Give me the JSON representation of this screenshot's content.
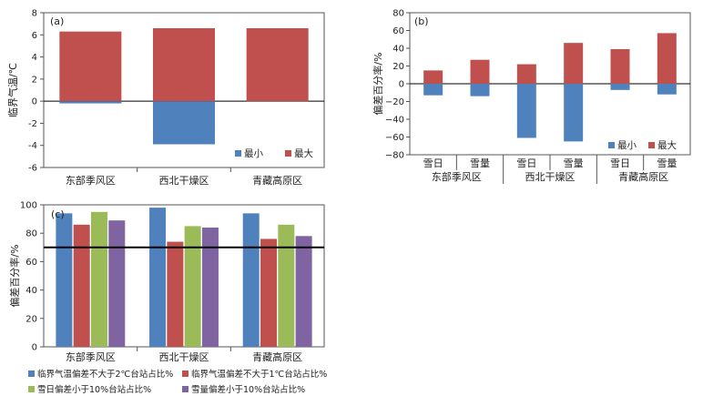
{
  "colors": {
    "min": "#4f81bd",
    "max": "#c0504d",
    "green": "#9bbb59",
    "purple": "#8064a2"
  },
  "chart_data": [
    {
      "id": "a",
      "type": "bar",
      "label": "(a)",
      "ylabel": "临界气温/℃",
      "categories": [
        "东部季风区",
        "西北干燥区",
        "青藏高原区"
      ],
      "ylim": [
        -6,
        8
      ],
      "yticks": [
        -6,
        -4,
        -2,
        0,
        2,
        4,
        6,
        8
      ],
      "series": [
        {
          "name": "最小",
          "values": [
            -0.2,
            -3.9,
            0.1
          ]
        },
        {
          "name": "最大",
          "values": [
            6.3,
            6.6,
            6.6
          ]
        }
      ],
      "legend": "bottom-right"
    },
    {
      "id": "b",
      "type": "bar",
      "label": "(b)",
      "ylabel": "偏差百分率/%",
      "categories": [
        "雪日",
        "雪量",
        "雪日",
        "雪量",
        "雪日",
        "雪量"
      ],
      "groups": [
        "东部季风区",
        "西北干燥区",
        "青藏高原区"
      ],
      "ylim": [
        -80,
        80
      ],
      "yticks": [
        -80,
        -60,
        -40,
        -20,
        0,
        20,
        40,
        60,
        80
      ],
      "series": [
        {
          "name": "最小",
          "values": [
            -13,
            -14,
            -61,
            -65,
            -7,
            -12
          ]
        },
        {
          "name": "最大",
          "values": [
            15,
            27,
            22,
            46,
            39,
            57
          ]
        }
      ],
      "legend": "bottom-right"
    },
    {
      "id": "c",
      "type": "bar",
      "label": "(c)",
      "ylabel": "偏差百分率/%",
      "categories": [
        "东部季风区",
        "西北干燥区",
        "青藏高原区"
      ],
      "ylim": [
        0,
        100
      ],
      "yticks": [
        0,
        20,
        40,
        60,
        80,
        100
      ],
      "reference_line": 70,
      "series": [
        {
          "name": "临界气温偏差不大于2℃台站占比%",
          "values": [
            94,
            98,
            94
          ]
        },
        {
          "name": "临界气温偏差不大于1℃台站占比%",
          "values": [
            86,
            74,
            76
          ]
        },
        {
          "name": "雪日偏差小于10%台站占比%",
          "values": [
            95,
            85,
            86
          ]
        },
        {
          "name": "雪量偏差小于10%台站占比%",
          "values": [
            89,
            84,
            78
          ]
        }
      ],
      "legend": "bottom"
    }
  ]
}
